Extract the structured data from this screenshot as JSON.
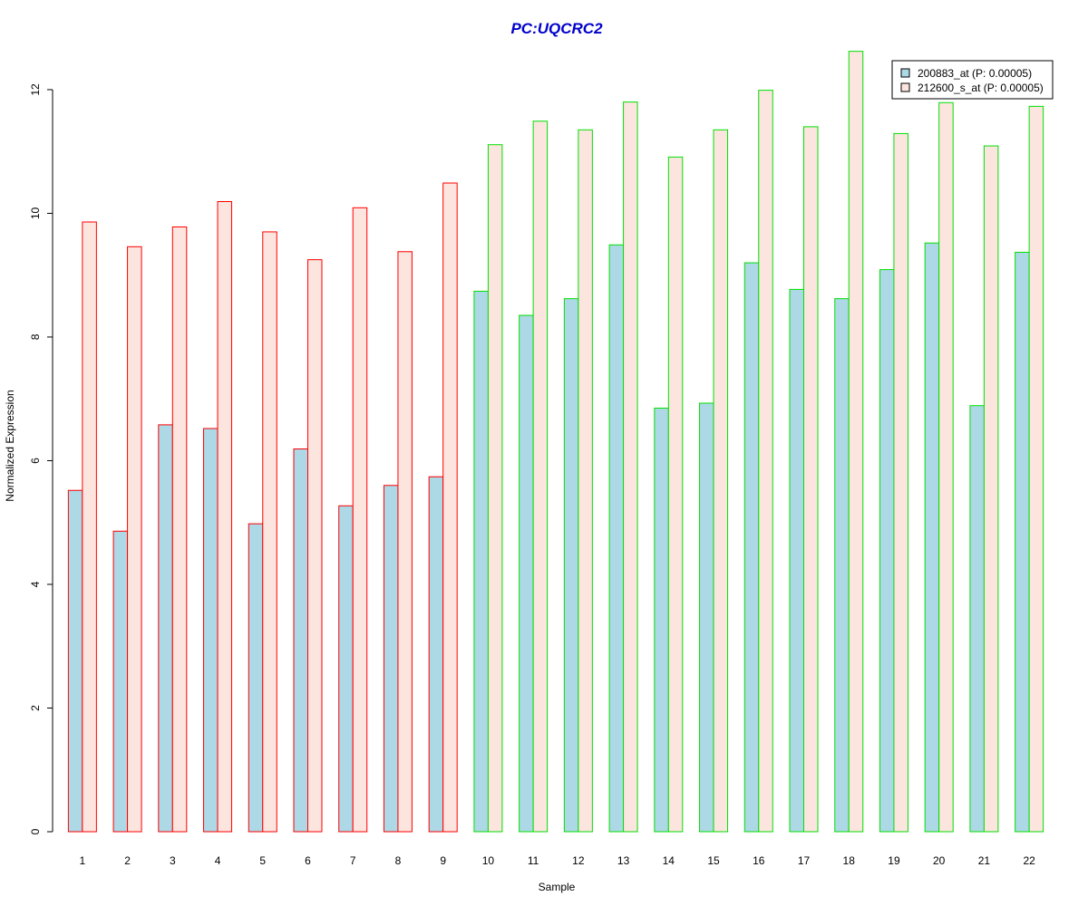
{
  "colors": {
    "title": "#0000cc",
    "series_fill": [
      "#add8e6",
      "#fde5df"
    ],
    "group_border": [
      "#ff0000",
      "#00e000"
    ],
    "axis": "#000000"
  },
  "chart_data": {
    "type": "bar",
    "title": "PC:UQCRC2",
    "xlabel": "Sample",
    "ylabel": "Normalized Expression",
    "ylim": [
      0,
      12.6
    ],
    "yticks": [
      0,
      2,
      4,
      6,
      8,
      10,
      12
    ],
    "categories": [
      "1",
      "2",
      "3",
      "4",
      "5",
      "6",
      "7",
      "8",
      "9",
      "10",
      "11",
      "12",
      "13",
      "14",
      "15",
      "16",
      "17",
      "18",
      "19",
      "20",
      "21",
      "22"
    ],
    "group_of_category": [
      0,
      0,
      0,
      0,
      0,
      0,
      0,
      0,
      0,
      1,
      1,
      1,
      1,
      1,
      1,
      1,
      1,
      1,
      1,
      1,
      1,
      1
    ],
    "series": [
      {
        "name": "200883_at (P: 0.00005)",
        "values": [
          5.52,
          4.86,
          6.58,
          6.52,
          4.98,
          6.19,
          5.27,
          5.6,
          5.74,
          8.74,
          8.35,
          8.62,
          9.49,
          6.85,
          6.93,
          9.2,
          8.77,
          8.62,
          9.09,
          9.52,
          6.89,
          9.37
        ]
      },
      {
        "name": "212600_s_at (P: 0.00005)",
        "values": [
          9.86,
          9.46,
          9.78,
          10.19,
          9.7,
          9.25,
          10.09,
          9.38,
          10.49,
          11.11,
          11.49,
          11.35,
          11.8,
          10.91,
          11.35,
          11.99,
          11.4,
          12.62,
          11.29,
          11.79,
          11.09,
          11.73
        ]
      }
    ],
    "legend_position": "top-right",
    "grid": false
  }
}
